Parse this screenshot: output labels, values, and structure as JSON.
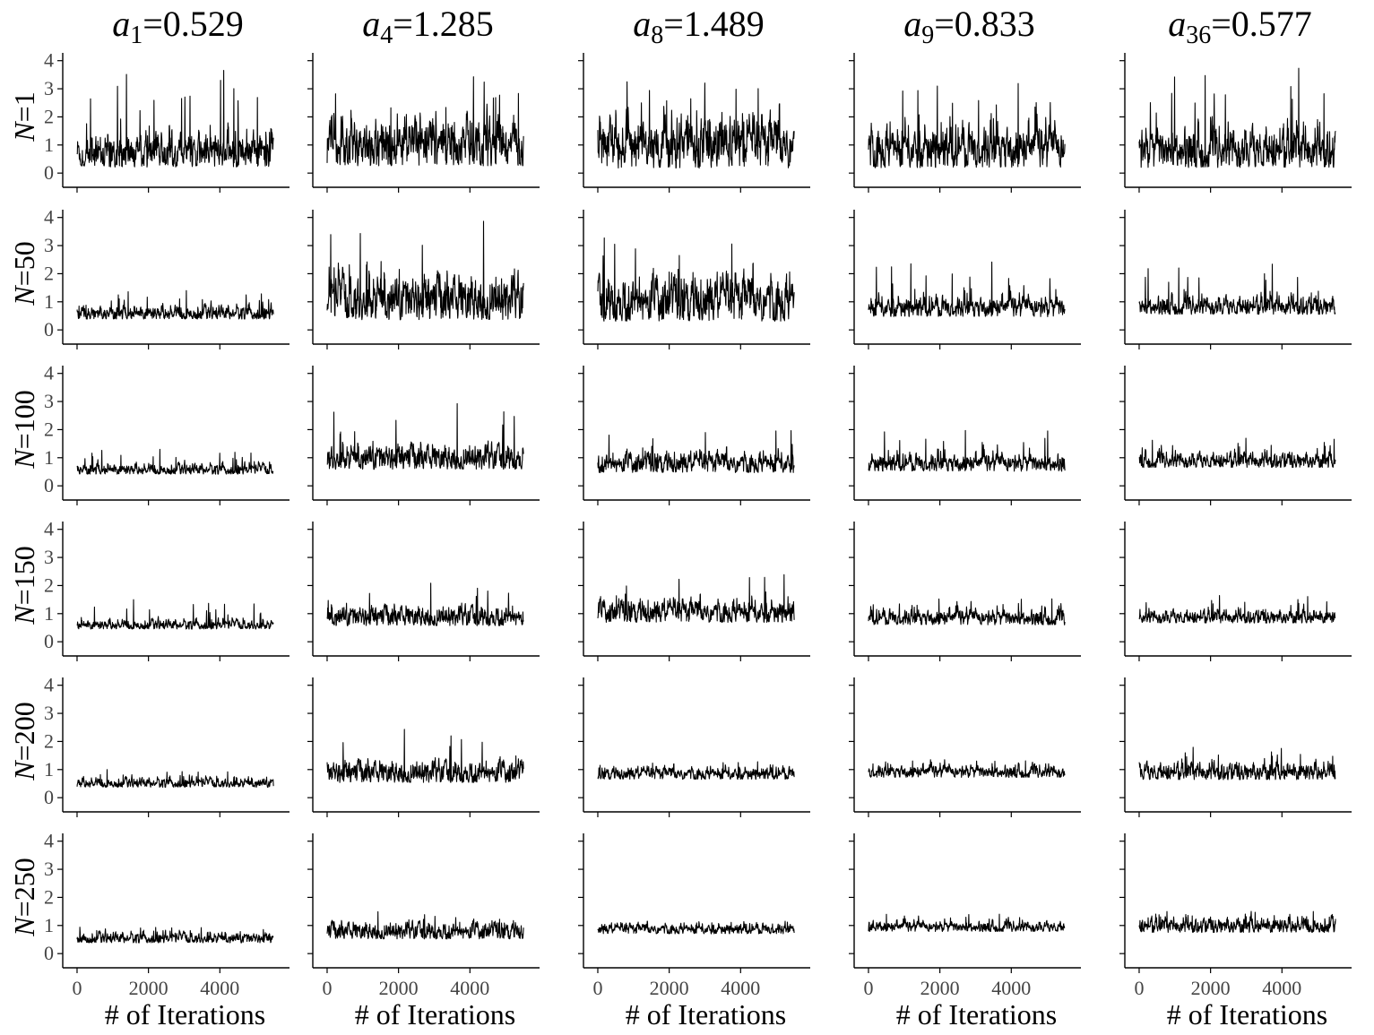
{
  "chart_data": {
    "type": "line",
    "layout": "facet-grid",
    "columns": [
      {
        "symbol": "a",
        "subscript": "1",
        "value": "=0.529",
        "true_value": 0.529
      },
      {
        "symbol": "a",
        "subscript": "4",
        "value": "=1.285",
        "true_value": 1.285
      },
      {
        "symbol": "a",
        "subscript": "8",
        "value": "=1.489",
        "true_value": 1.489
      },
      {
        "symbol": "a",
        "subscript": "9",
        "value": "=0.833",
        "true_value": 0.833
      },
      {
        "symbol": "a",
        "subscript": "36",
        "value": "=0.577",
        "true_value": 0.577
      }
    ],
    "rows": [
      {
        "symbol": "N",
        "value": "=1"
      },
      {
        "symbol": "N",
        "value": "=50"
      },
      {
        "symbol": "N",
        "value": "=100"
      },
      {
        "symbol": "N",
        "value": "=150"
      },
      {
        "symbol": "N",
        "value": "=200"
      },
      {
        "symbol": "N",
        "value": "=250"
      }
    ],
    "xlabel": "# of Iterations",
    "ylabel": "",
    "xlim": [
      -150,
      5800
    ],
    "ylim": [
      -0.25,
      4.15
    ],
    "x_range": [
      0,
      5500
    ],
    "xticks": [
      0,
      2000,
      4000
    ],
    "yticks": [
      0,
      1,
      2,
      3,
      4
    ],
    "grid": false,
    "legend": "none",
    "panels": [
      [
        {
          "mean": 0.76,
          "sd": 0.33,
          "max": 3.85
        },
        {
          "mean": 1.05,
          "sd": 0.48,
          "max": 3.55
        },
        {
          "mean": 1.0,
          "sd": 0.5,
          "max": 3.65
        },
        {
          "mean": 0.88,
          "sd": 0.42,
          "max": 3.45
        },
        {
          "mean": 0.86,
          "sd": 0.4,
          "max": 3.75
        }
      ],
      [
        {
          "mean": 0.6,
          "sd": 0.13,
          "max": 1.4
        },
        {
          "mean": 1.1,
          "sd": 0.45,
          "max": 3.9
        },
        {
          "mean": 1.05,
          "sd": 0.45,
          "max": 3.7
        },
        {
          "mean": 0.8,
          "sd": 0.2,
          "max": 2.6
        },
        {
          "mean": 0.85,
          "sd": 0.18,
          "max": 2.35
        }
      ],
      [
        {
          "mean": 0.58,
          "sd": 0.1,
          "max": 1.3
        },
        {
          "mean": 1.0,
          "sd": 0.25,
          "max": 2.95
        },
        {
          "mean": 0.8,
          "sd": 0.2,
          "max": 2.25
        },
        {
          "mean": 0.8,
          "sd": 0.17,
          "max": 2.1
        },
        {
          "mean": 0.9,
          "sd": 0.15,
          "max": 1.7
        }
      ],
      [
        {
          "mean": 0.6,
          "sd": 0.09,
          "max": 1.5
        },
        {
          "mean": 0.9,
          "sd": 0.2,
          "max": 2.1
        },
        {
          "mean": 1.05,
          "sd": 0.22,
          "max": 2.6
        },
        {
          "mean": 0.85,
          "sd": 0.15,
          "max": 1.6
        },
        {
          "mean": 0.88,
          "sd": 0.13,
          "max": 1.65
        }
      ],
      [
        {
          "mean": 0.52,
          "sd": 0.09,
          "max": 1.0
        },
        {
          "mean": 0.9,
          "sd": 0.22,
          "max": 2.45
        },
        {
          "mean": 0.85,
          "sd": 0.12,
          "max": 1.35
        },
        {
          "mean": 0.92,
          "sd": 0.12,
          "max": 1.35
        },
        {
          "mean": 0.92,
          "sd": 0.17,
          "max": 1.8
        }
      ],
      [
        {
          "mean": 0.55,
          "sd": 0.1,
          "max": 1.0
        },
        {
          "mean": 0.8,
          "sd": 0.17,
          "max": 1.5
        },
        {
          "mean": 0.87,
          "sd": 0.1,
          "max": 1.15
        },
        {
          "mean": 0.95,
          "sd": 0.1,
          "max": 1.45
        },
        {
          "mean": 1.0,
          "sd": 0.15,
          "max": 1.5
        }
      ]
    ]
  }
}
